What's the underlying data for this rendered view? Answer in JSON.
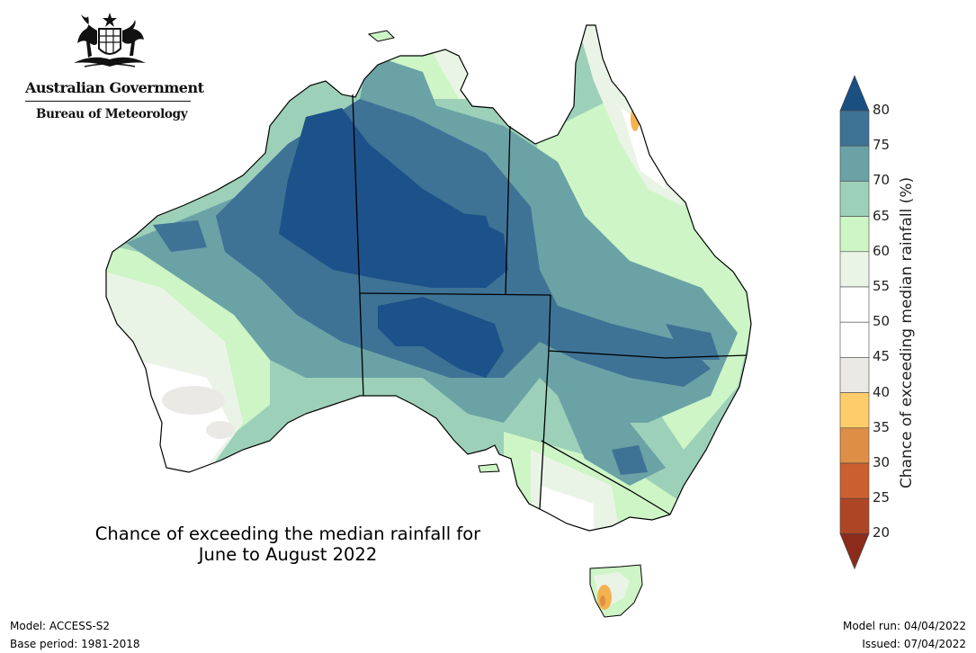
{
  "logo": {
    "government": "Australian Government",
    "bureau": "Bureau of Meteorology",
    "icon": "coat-of-arms-icon"
  },
  "title": {
    "line1": "Chance of exceeding the median rainfall for",
    "line2": "June to August 2022"
  },
  "footer": {
    "model": "Model: ACCESS-S2",
    "base_period": "Base period: 1981-2018",
    "model_run": "Model run: 04/04/2022",
    "issued": "Issued: 07/04/2022"
  },
  "colorbar": {
    "label": "Chance of exceeding median rainfall (%)",
    "ticks": [
      "80",
      "75",
      "70",
      "65",
      "60",
      "55",
      "50",
      "45",
      "40",
      "35",
      "30",
      "25",
      "20"
    ],
    "bands": [
      {
        "range": [
          75,
          80
        ],
        "color": "#3e7396"
      },
      {
        "range": [
          70,
          75
        ],
        "color": "#6aa2a6"
      },
      {
        "range": [
          65,
          70
        ],
        "color": "#9dd0b9"
      },
      {
        "range": [
          60,
          65
        ],
        "color": "#cdf5c6"
      },
      {
        "range": [
          55,
          60
        ],
        "color": "#eaf4e6"
      },
      {
        "range": [
          50,
          55
        ],
        "color": "#ffffff"
      },
      {
        "range": [
          45,
          50
        ],
        "color": "#ffffff"
      },
      {
        "range": [
          40,
          45
        ],
        "color": "#ebe9e6"
      },
      {
        "range": [
          35,
          40
        ],
        "color": "#fecd6a"
      },
      {
        "range": [
          30,
          35
        ],
        "color": "#de8f45"
      },
      {
        "range": [
          25,
          30
        ],
        "color": "#cc5f2f"
      },
      {
        "range": [
          20,
          25
        ],
        "color": "#ae4626"
      }
    ],
    "over_color": "#1a4f82",
    "under_color": "#8c2b1b"
  },
  "map_colors": {
    "deep": "#1d5189",
    "dark": "#3e7396",
    "mid": "#6aa2a6",
    "light": "#9dd0b9",
    "pale": "#cdf5c6",
    "faint": "#eaf4e6",
    "neutral": "#ebe9e6",
    "dry": "#f4b24f",
    "border": "#000000"
  }
}
